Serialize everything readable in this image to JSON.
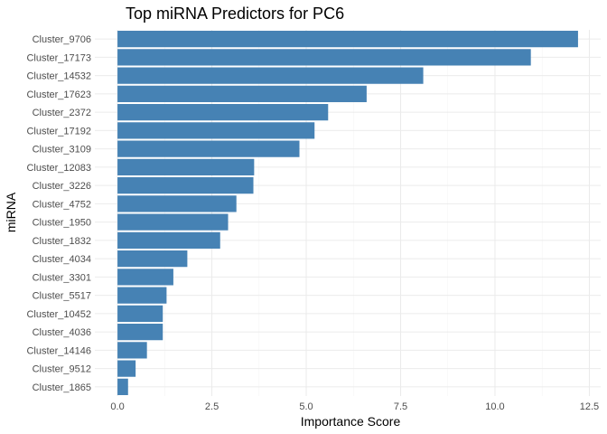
{
  "chart_data": {
    "type": "bar",
    "orientation": "horizontal",
    "title": "Top miRNA Predictors for PC6",
    "xlabel": "Importance Score",
    "ylabel": "miRNA",
    "categories": [
      "Cluster_9706",
      "Cluster_17173",
      "Cluster_14532",
      "Cluster_17623",
      "Cluster_2372",
      "Cluster_17192",
      "Cluster_3109",
      "Cluster_12083",
      "Cluster_3226",
      "Cluster_4752",
      "Cluster_1950",
      "Cluster_1832",
      "Cluster_4034",
      "Cluster_3301",
      "Cluster_5517",
      "Cluster_10452",
      "Cluster_4036",
      "Cluster_14146",
      "Cluster_9512",
      "Cluster_1865"
    ],
    "values": [
      12.2,
      10.95,
      8.1,
      6.6,
      5.58,
      5.22,
      4.82,
      3.62,
      3.6,
      3.15,
      2.93,
      2.72,
      1.85,
      1.48,
      1.3,
      1.2,
      1.2,
      0.78,
      0.48,
      0.28
    ],
    "xlim": [
      -0.6,
      12.8
    ],
    "xticks": [
      0,
      2.5,
      5,
      7.5,
      10,
      12.5
    ],
    "xtick_labels": [
      "0.0",
      "2.5",
      "5.0",
      "7.5",
      "10.0",
      "12.5"
    ],
    "bar_color": "#4682B4",
    "grid": true,
    "legend": "none"
  }
}
